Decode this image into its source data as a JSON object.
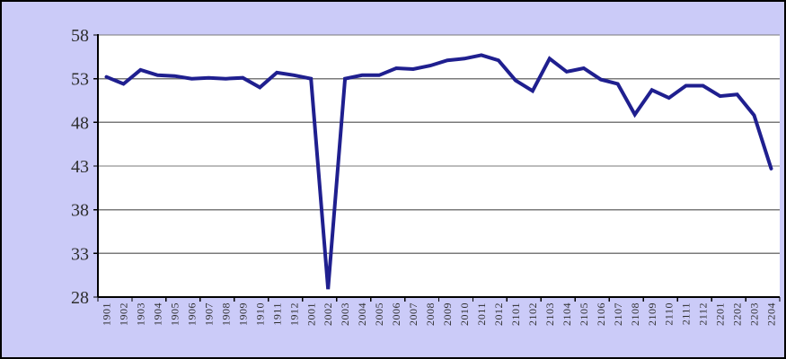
{
  "window": {
    "background_color": "#CBCBF8",
    "border_color": "#000000"
  },
  "chart_data": {
    "type": "line",
    "title": "",
    "xlabel": "",
    "ylabel": "",
    "categories": [
      "1901",
      "1902",
      "1903",
      "1904",
      "1905",
      "1906",
      "1907",
      "1908",
      "1909",
      "1910",
      "1911",
      "1912",
      "2001",
      "2002",
      "2003",
      "2004",
      "2005",
      "2006",
      "2007",
      "2008",
      "2009",
      "2010",
      "2011",
      "2012",
      "2101",
      "2102",
      "2103",
      "2104",
      "2105",
      "2106",
      "2107",
      "2108",
      "2109",
      "2110",
      "2111",
      "2112",
      "2201",
      "2202",
      "2203",
      "2204"
    ],
    "values": [
      53.2,
      52.4,
      54.0,
      53.4,
      53.3,
      53.0,
      53.1,
      53.0,
      53.1,
      52.0,
      53.7,
      53.4,
      53.0,
      28.9,
      53.0,
      53.4,
      53.4,
      54.2,
      54.1,
      54.5,
      55.1,
      55.3,
      55.7,
      55.1,
      52.8,
      51.6,
      55.3,
      53.8,
      54.2,
      52.9,
      52.4,
      48.9,
      51.7,
      50.8,
      52.2,
      52.2,
      51.0,
      51.2,
      48.8,
      42.7
    ],
    "ylim": [
      28,
      58
    ],
    "yticks": [
      28,
      33,
      38,
      43,
      48,
      53,
      58
    ],
    "x_tick_interval": 2,
    "grid": true,
    "legend": false,
    "line_color": "#1F1F8F",
    "line_width": 4,
    "plot_background": "#FFFFFF",
    "gridline_color": "#7a7a7a",
    "axis_color": "#000000",
    "label_color": "#2e2e2e",
    "y_label_font_size": 20,
    "x_label_font_size": 12
  }
}
